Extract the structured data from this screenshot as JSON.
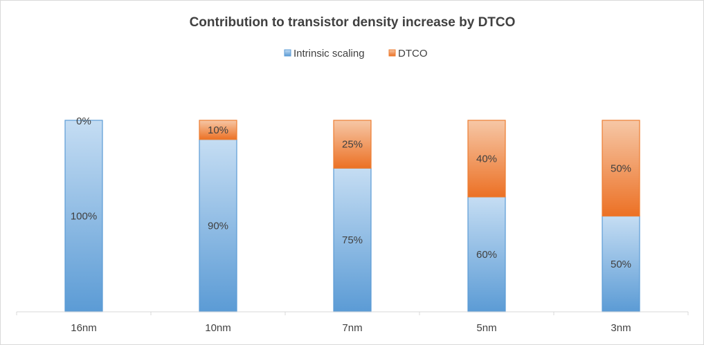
{
  "chart_data": {
    "type": "bar",
    "stacked": true,
    "title": "Contribution to transistor density increase by DTCO",
    "categories": [
      "16nm",
      "10nm",
      "7nm",
      "5nm",
      "3nm"
    ],
    "series": [
      {
        "name": "Intrinsic scaling",
        "values": [
          100,
          90,
          75,
          60,
          50
        ],
        "labels": [
          "100%",
          "90%",
          "75%",
          "60%",
          "50%"
        ],
        "color": "#5b9bd5"
      },
      {
        "name": "DTCO",
        "values": [
          0,
          10,
          25,
          40,
          50
        ],
        "labels": [
          "0%",
          "10%",
          "25%",
          "40%",
          "50%"
        ],
        "color": "#ed7d31"
      }
    ],
    "ylim": [
      0,
      100
    ],
    "xlabel": "",
    "ylabel": "",
    "grid": false,
    "legend_position": "top"
  }
}
